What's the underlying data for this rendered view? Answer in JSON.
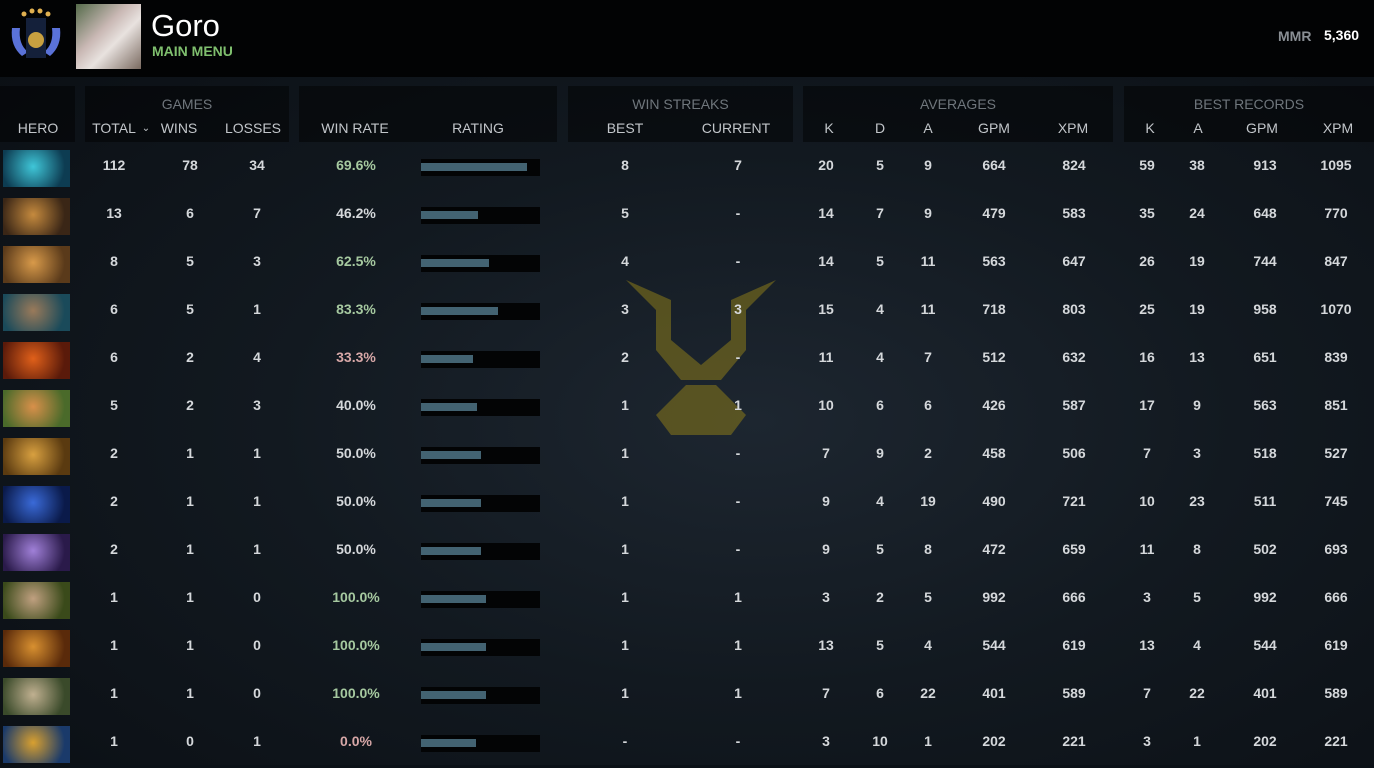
{
  "header": {
    "player_name": "Goro",
    "subtitle": "MAIN MENU",
    "mmr_label": "MMR",
    "mmr_value": "5,360"
  },
  "columns": {
    "hero": "HERO",
    "games": "GAMES",
    "total": "TOTAL",
    "sort_icon": "chevron-down-icon",
    "wins": "WINS",
    "losses": "LOSSES",
    "win_rate": "WIN RATE",
    "rating": "RATING",
    "win_streaks": "WIN STREAKS",
    "best": "BEST",
    "current": "CURRENT",
    "averages": "AVERAGES",
    "k": "K",
    "d": "D",
    "a": "A",
    "gpm": "GPM",
    "xpm": "XPM",
    "best_records": "BEST RECORDS",
    "bk": "K",
    "ba": "A",
    "bgpm": "GPM",
    "bxpm": "XPM"
  },
  "colors": {
    "win_good": "#a6c9a0",
    "win_neutral": "#d5d8db",
    "win_bad": "#d7a7a7",
    "rating_fill": "#436372",
    "accent_green": "#7fbf6e"
  },
  "rows": [
    {
      "total": "112",
      "wins": "78",
      "losses": "34",
      "win_rate": "69.6%",
      "rating": 0.89,
      "best": "8",
      "current": "7",
      "k": "20",
      "d": "5",
      "a": "9",
      "gpm": "664",
      "xpm": "824",
      "bk": "59",
      "ba": "38",
      "bgpm": "913",
      "bxpm": "1095",
      "tone": "good",
      "icon": [
        "#0d3c52",
        "#3fc6d8"
      ]
    },
    {
      "total": "13",
      "wins": "6",
      "losses": "7",
      "win_rate": "46.2%",
      "rating": 0.48,
      "best": "5",
      "current": "-",
      "k": "14",
      "d": "7",
      "a": "9",
      "gpm": "479",
      "xpm": "583",
      "bk": "35",
      "ba": "24",
      "bgpm": "648",
      "bxpm": "770",
      "tone": "neutral",
      "icon": [
        "#3a2616",
        "#c58a3e"
      ]
    },
    {
      "total": "8",
      "wins": "5",
      "losses": "3",
      "win_rate": "62.5%",
      "rating": 0.57,
      "best": "4",
      "current": "-",
      "k": "14",
      "d": "5",
      "a": "11",
      "gpm": "563",
      "xpm": "647",
      "bk": "26",
      "ba": "19",
      "bgpm": "744",
      "bxpm": "847",
      "tone": "good",
      "icon": [
        "#5a3a1a",
        "#d89a4a"
      ]
    },
    {
      "total": "6",
      "wins": "5",
      "losses": "1",
      "win_rate": "83.3%",
      "rating": 0.65,
      "best": "3",
      "current": "3",
      "k": "15",
      "d": "4",
      "a": "11",
      "gpm": "718",
      "xpm": "803",
      "bk": "25",
      "ba": "19",
      "bgpm": "958",
      "bxpm": "1070",
      "tone": "good",
      "icon": [
        "#1a4a5a",
        "#9a7a5a"
      ]
    },
    {
      "total": "6",
      "wins": "2",
      "losses": "4",
      "win_rate": "33.3%",
      "rating": 0.44,
      "best": "2",
      "current": "-",
      "k": "11",
      "d": "4",
      "a": "7",
      "gpm": "512",
      "xpm": "632",
      "bk": "16",
      "ba": "13",
      "bgpm": "651",
      "bxpm": "839",
      "tone": "bad",
      "icon": [
        "#5a1a0a",
        "#e0601a"
      ]
    },
    {
      "total": "5",
      "wins": "2",
      "losses": "3",
      "win_rate": "40.0%",
      "rating": 0.47,
      "best": "1",
      "current": "1",
      "k": "10",
      "d": "6",
      "a": "6",
      "gpm": "426",
      "xpm": "587",
      "bk": "17",
      "ba": "9",
      "bgpm": "563",
      "bxpm": "851",
      "tone": "neutral",
      "icon": [
        "#4a6a2a",
        "#d8904a"
      ]
    },
    {
      "total": "2",
      "wins": "1",
      "losses": "1",
      "win_rate": "50.0%",
      "rating": 0.5,
      "best": "1",
      "current": "-",
      "k": "7",
      "d": "9",
      "a": "2",
      "gpm": "458",
      "xpm": "506",
      "bk": "7",
      "ba": "3",
      "bgpm": "518",
      "bxpm": "527",
      "tone": "neutral",
      "icon": [
        "#5a3a10",
        "#d8a040"
      ]
    },
    {
      "total": "2",
      "wins": "1",
      "losses": "1",
      "win_rate": "50.0%",
      "rating": 0.5,
      "best": "1",
      "current": "-",
      "k": "9",
      "d": "4",
      "a": "19",
      "gpm": "490",
      "xpm": "721",
      "bk": "10",
      "ba": "23",
      "bgpm": "511",
      "bxpm": "745",
      "tone": "neutral",
      "icon": [
        "#0a1a4a",
        "#3a6ad8"
      ]
    },
    {
      "total": "2",
      "wins": "1",
      "losses": "1",
      "win_rate": "50.0%",
      "rating": 0.5,
      "best": "1",
      "current": "-",
      "k": "9",
      "d": "5",
      "a": "8",
      "gpm": "472",
      "xpm": "659",
      "bk": "11",
      "ba": "8",
      "bgpm": "502",
      "bxpm": "693",
      "tone": "neutral",
      "icon": [
        "#2a1a4a",
        "#a080d8"
      ]
    },
    {
      "total": "1",
      "wins": "1",
      "losses": "0",
      "win_rate": "100.0%",
      "rating": 0.55,
      "best": "1",
      "current": "1",
      "k": "3",
      "d": "2",
      "a": "5",
      "gpm": "992",
      "xpm": "666",
      "bk": "3",
      "ba": "5",
      "bgpm": "992",
      "bxpm": "666",
      "tone": "good",
      "icon": [
        "#3a4a1a",
        "#c0a080"
      ]
    },
    {
      "total": "1",
      "wins": "1",
      "losses": "0",
      "win_rate": "100.0%",
      "rating": 0.55,
      "best": "1",
      "current": "1",
      "k": "13",
      "d": "5",
      "a": "4",
      "gpm": "544",
      "xpm": "619",
      "bk": "13",
      "ba": "4",
      "bgpm": "544",
      "bxpm": "619",
      "tone": "good",
      "icon": [
        "#5a2a0a",
        "#d89030"
      ]
    },
    {
      "total": "1",
      "wins": "1",
      "losses": "0",
      "win_rate": "100.0%",
      "rating": 0.55,
      "best": "1",
      "current": "1",
      "k": "7",
      "d": "6",
      "a": "22",
      "gpm": "401",
      "xpm": "589",
      "bk": "7",
      "ba": "22",
      "bgpm": "401",
      "bxpm": "589",
      "tone": "good",
      "icon": [
        "#3a4a2a",
        "#c0b090"
      ]
    },
    {
      "total": "1",
      "wins": "0",
      "losses": "1",
      "win_rate": "0.0%",
      "rating": 0.46,
      "best": "-",
      "current": "-",
      "k": "3",
      "d": "10",
      "a": "1",
      "gpm": "202",
      "xpm": "221",
      "bk": "3",
      "ba": "1",
      "bgpm": "202",
      "bxpm": "221",
      "tone": "bad",
      "icon": [
        "#1a3a6a",
        "#d8a030"
      ]
    }
  ]
}
